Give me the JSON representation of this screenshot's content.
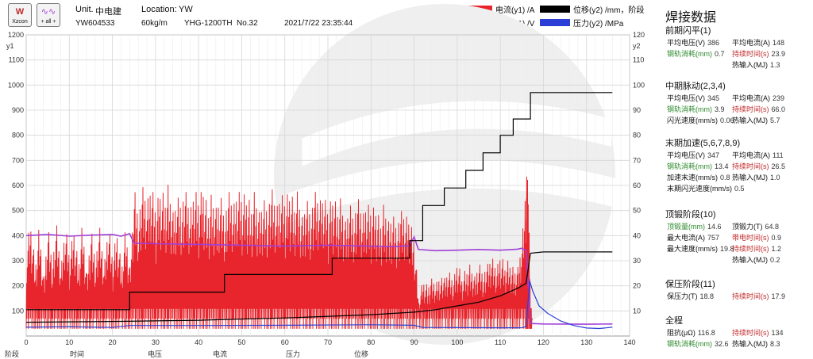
{
  "header": {
    "logo_left_top": "W",
    "logo_left_bottom": "Xzcon",
    "logo_right_bottom": "+ all +",
    "unit_label": "Unit.",
    "unit_value": "中电建",
    "location_label": "Location:",
    "location_value": "YW",
    "serial": "YW604533",
    "rail_weight": "60kg/m",
    "machine": "YHG-1200TH",
    "number": "No.32",
    "datetime": "2021/7/22 23:35:44"
  },
  "legend": [
    {
      "label": "电流(y1) /A",
      "color": "#e8242c"
    },
    {
      "label": "位移(y2) /mm，阶段",
      "color": "#000000"
    },
    {
      "label": "电压(y1) /V",
      "color": "#a13fd6"
    },
    {
      "label": "压力(y2) /MPa",
      "color": "#2b3fd6"
    }
  ],
  "bottom_labels": [
    "阶段",
    "时间",
    "电压",
    "电流",
    "压力",
    "位移"
  ],
  "panel": {
    "title": "焊接数据",
    "sections": [
      {
        "title": "前期闪平(1)",
        "rows": [
          [
            {
              "label": "平均电压(V)",
              "value": "386",
              "color": "normal"
            },
            {
              "label": "平均电流(A)",
              "value": "148",
              "color": "normal"
            }
          ],
          [
            {
              "label": "钢轨消耗(mm)",
              "value": "0.7",
              "color": "green"
            },
            {
              "label": "持续时间(s)",
              "value": "23.9",
              "color": "red"
            }
          ],
          [
            null,
            {
              "label": "热输入(MJ)",
              "value": "1.3",
              "color": "normal"
            }
          ]
        ]
      },
      {
        "title": "中期脉动(2,3,4)",
        "rows": [
          [
            {
              "label": "平均电压(V)",
              "value": "345",
              "color": "normal"
            },
            {
              "label": "平均电流(A)",
              "value": "239",
              "color": "normal"
            }
          ],
          [
            {
              "label": "钢轨消耗(mm)",
              "value": "3.9",
              "color": "green"
            },
            {
              "label": "持续时间(s)",
              "value": "66.0",
              "color": "red"
            }
          ],
          [
            {
              "label": "闪光速度(mm/s)",
              "value": "0.06",
              "color": "normal"
            },
            {
              "label": "热输入(MJ)",
              "value": "5.7",
              "color": "normal"
            }
          ]
        ]
      },
      {
        "title": "末期加速(5,6,7,8,9)",
        "rows": [
          [
            {
              "label": "平均电压(V)",
              "value": "347",
              "color": "normal"
            },
            {
              "label": "平均电流(A)",
              "value": "111",
              "color": "normal"
            }
          ],
          [
            {
              "label": "钢轨消耗(mm)",
              "value": "13.4",
              "color": "green"
            },
            {
              "label": "持续时间(s)",
              "value": "26.5",
              "color": "red"
            }
          ],
          [
            {
              "label": "加速末速(mm/s)",
              "value": "0.8",
              "color": "normal"
            },
            {
              "label": "热输入(MJ)",
              "value": "1.0",
              "color": "normal"
            }
          ],
          [
            {
              "label": "末期闪光速度(mm/s)",
              "value": "0.5",
              "color": "normal"
            },
            null
          ]
        ]
      },
      {
        "title": "顶锻阶段(10)",
        "rows": [
          [
            {
              "label": "顶锻量(mm)",
              "value": "14.6",
              "color": "green"
            },
            {
              "label": "顶锻力(T)",
              "value": "64.8",
              "color": "normal"
            }
          ],
          [
            {
              "label": "最大电流(A)",
              "value": "757",
              "color": "normal"
            },
            {
              "label": "带电时间(s)",
              "value": "0.9",
              "color": "red"
            }
          ],
          [
            {
              "label": "最大速度(mm/s)",
              "value": "19.8",
              "color": "normal"
            },
            {
              "label": "持续时间(s)",
              "value": "1.2",
              "color": "red"
            }
          ],
          [
            null,
            {
              "label": "热输入(MJ)",
              "value": "0.2",
              "color": "normal"
            }
          ]
        ]
      },
      {
        "title": "保压阶段(11)",
        "rows": [
          [
            {
              "label": "保压力(T)",
              "value": "18.8",
              "color": "normal"
            },
            {
              "label": "持续时间(s)",
              "value": "17.9",
              "color": "red"
            }
          ]
        ]
      },
      {
        "title": "全程",
        "rows": [
          [
            {
              "label": "阻抗(μΩ)",
              "value": "116.8",
              "color": "normal"
            },
            {
              "label": "持续时间(s)",
              "value": "134",
              "color": "red"
            }
          ],
          [
            {
              "label": "钢轨消耗(mm)",
              "value": "32.6",
              "color": "green"
            },
            {
              "label": "热输入(MJ)",
              "value": "8.3",
              "color": "normal"
            }
          ]
        ]
      }
    ]
  },
  "chart_data": {
    "type": "line",
    "xlim": [
      0,
      140
    ],
    "xticks": [
      0,
      10,
      20,
      30,
      40,
      50,
      60,
      70,
      80,
      90,
      100,
      110,
      120,
      130,
      140
    ],
    "y1lim": [
      0,
      1200
    ],
    "y1ticks": [
      100,
      200,
      300,
      400,
      500,
      600,
      700,
      800,
      900,
      1000,
      1100,
      1200
    ],
    "y1label": "y1",
    "y2lim": [
      0,
      120
    ],
    "y2ticks": [
      10,
      20,
      30,
      40,
      50,
      60,
      70,
      80,
      90,
      100,
      110,
      120
    ],
    "y2label": "y2",
    "grid": true,
    "series": [
      {
        "name": "电流(y1) /A",
        "axis": "y1",
        "color": "#e8242c",
        "envelope": [
          [
            0,
            380
          ],
          [
            1,
            480
          ],
          [
            2,
            300
          ],
          [
            3,
            470
          ],
          [
            4,
            250
          ],
          [
            5,
            480
          ],
          [
            6,
            320
          ],
          [
            7,
            460
          ],
          [
            8,
            280
          ],
          [
            9,
            470
          ],
          [
            10,
            330
          ],
          [
            11,
            460
          ],
          [
            12,
            300
          ],
          [
            13,
            480
          ],
          [
            14,
            270
          ],
          [
            15,
            470
          ],
          [
            16,
            330
          ],
          [
            17,
            450
          ],
          [
            18,
            290
          ],
          [
            19,
            470
          ],
          [
            20,
            320
          ],
          [
            21,
            450
          ],
          [
            22,
            290
          ],
          [
            23,
            460
          ],
          [
            24,
            300
          ],
          [
            25,
            650
          ],
          [
            26,
            520
          ],
          [
            27,
            620
          ],
          [
            28,
            560
          ],
          [
            29,
            640
          ],
          [
            30,
            520
          ],
          [
            31,
            630
          ],
          [
            32,
            580
          ],
          [
            33,
            640
          ],
          [
            34,
            540
          ],
          [
            35,
            610
          ],
          [
            36,
            580
          ],
          [
            37,
            600
          ],
          [
            38,
            520
          ],
          [
            39,
            620
          ],
          [
            40,
            560
          ],
          [
            41,
            640
          ],
          [
            42,
            530
          ],
          [
            43,
            600
          ],
          [
            44,
            560
          ],
          [
            45,
            620
          ],
          [
            46,
            520
          ],
          [
            47,
            600
          ],
          [
            48,
            540
          ],
          [
            49,
            610
          ],
          [
            50,
            580
          ],
          [
            51,
            600
          ],
          [
            52,
            550
          ],
          [
            53,
            610
          ],
          [
            54,
            540
          ],
          [
            55,
            600
          ],
          [
            56,
            560
          ],
          [
            57,
            610
          ],
          [
            58,
            530
          ],
          [
            59,
            600
          ],
          [
            60,
            560
          ],
          [
            61,
            620
          ],
          [
            62,
            560
          ],
          [
            63,
            610
          ],
          [
            64,
            520
          ],
          [
            65,
            600
          ],
          [
            66,
            540
          ],
          [
            67,
            600
          ],
          [
            68,
            560
          ],
          [
            69,
            590
          ],
          [
            70,
            520
          ],
          [
            71,
            600
          ],
          [
            72,
            540
          ],
          [
            73,
            580
          ],
          [
            74,
            500
          ],
          [
            75,
            580
          ],
          [
            76,
            520
          ],
          [
            77,
            570
          ],
          [
            78,
            500
          ],
          [
            79,
            560
          ],
          [
            80,
            520
          ],
          [
            81,
            550
          ],
          [
            82,
            480
          ],
          [
            83,
            560
          ],
          [
            84,
            500
          ],
          [
            85,
            530
          ],
          [
            86,
            480
          ],
          [
            87,
            520
          ],
          [
            88,
            500
          ],
          [
            89,
            480
          ],
          [
            90,
            400
          ],
          [
            91,
            150
          ],
          [
            92,
            240
          ],
          [
            93,
            210
          ],
          [
            94,
            250
          ],
          [
            95,
            230
          ],
          [
            96,
            260
          ],
          [
            97,
            240
          ],
          [
            98,
            270
          ],
          [
            99,
            230
          ],
          [
            100,
            310
          ],
          [
            101,
            250
          ],
          [
            102,
            280
          ],
          [
            103,
            300
          ],
          [
            104,
            260
          ],
          [
            105,
            320
          ],
          [
            106,
            270
          ],
          [
            107,
            300
          ],
          [
            108,
            330
          ],
          [
            109,
            280
          ],
          [
            110,
            340
          ],
          [
            111,
            300
          ],
          [
            112,
            320
          ],
          [
            113,
            280
          ],
          [
            114,
            300
          ],
          [
            115,
            420
          ],
          [
            116,
            720
          ],
          [
            116.3,
            650
          ],
          [
            116.6,
            500
          ],
          [
            117,
            80
          ],
          [
            117.4,
            70
          ]
        ]
      },
      {
        "name": "电压(y1) /V",
        "axis": "y1",
        "color": "#a13fd6",
        "points": [
          [
            0,
            400
          ],
          [
            5,
            405
          ],
          [
            10,
            398
          ],
          [
            15,
            402
          ],
          [
            20,
            405
          ],
          [
            22,
            398
          ],
          [
            24,
            408
          ],
          [
            25,
            370
          ],
          [
            30,
            368
          ],
          [
            40,
            365
          ],
          [
            50,
            362
          ],
          [
            60,
            358
          ],
          [
            70,
            362
          ],
          [
            80,
            358
          ],
          [
            85,
            356
          ],
          [
            89,
            360
          ],
          [
            90,
            395
          ],
          [
            91,
            345
          ],
          [
            95,
            340
          ],
          [
            100,
            342
          ],
          [
            105,
            345
          ],
          [
            110,
            342
          ],
          [
            114,
            346
          ],
          [
            115,
            350
          ],
          [
            116,
            340
          ],
          [
            116.5,
            200
          ],
          [
            117,
            50
          ],
          [
            120,
            48
          ],
          [
            130,
            47
          ],
          [
            136,
            48
          ]
        ]
      },
      {
        "name": "位移(y2) /mm，阶段",
        "axis": "y2",
        "color": "#000000",
        "points": [
          [
            0,
            10.5
          ],
          [
            24,
            10.5
          ],
          [
            24,
            17.5
          ],
          [
            46,
            17.5
          ],
          [
            46,
            24.5
          ],
          [
            71,
            24.5
          ],
          [
            71,
            31
          ],
          [
            89,
            31
          ],
          [
            89,
            38
          ],
          [
            92,
            38
          ],
          [
            92,
            52
          ],
          [
            97,
            52
          ],
          [
            97,
            59
          ],
          [
            102,
            59
          ],
          [
            102,
            66
          ],
          [
            106,
            66
          ],
          [
            106,
            73
          ],
          [
            110,
            73
          ],
          [
            110,
            80
          ],
          [
            113,
            80
          ],
          [
            113,
            86.5
          ],
          [
            117,
            86.5
          ],
          [
            117,
            97
          ],
          [
            136,
            97
          ]
        ]
      },
      {
        "name": "位移(y2) /mm，阶段",
        "axis": "y2",
        "color": "#000000",
        "points": [
          [
            0,
            5.5
          ],
          [
            20,
            5.8
          ],
          [
            40,
            6.3
          ],
          [
            60,
            7.2
          ],
          [
            80,
            8.5
          ],
          [
            90,
            9.5
          ],
          [
            95,
            10.5
          ],
          [
            100,
            12
          ],
          [
            105,
            13.5
          ],
          [
            110,
            16
          ],
          [
            114,
            19
          ],
          [
            116,
            21
          ],
          [
            117,
            33
          ],
          [
            120,
            33.5
          ],
          [
            136,
            33.5
          ]
        ]
      },
      {
        "name": "压力(y2) /MPa",
        "axis": "y2",
        "color": "#2b3fd6",
        "points": [
          [
            0,
            3.5
          ],
          [
            10,
            3.7
          ],
          [
            20,
            3.4
          ],
          [
            24,
            4.2
          ],
          [
            40,
            4.2
          ],
          [
            60,
            4.3
          ],
          [
            80,
            4.5
          ],
          [
            90,
            4.3
          ],
          [
            92,
            3.4
          ],
          [
            110,
            3.3
          ],
          [
            115,
            3.3
          ],
          [
            116,
            3.8
          ],
          [
            116.8,
            22
          ],
          [
            117.5,
            18
          ],
          [
            119,
            12
          ],
          [
            121,
            9
          ],
          [
            124,
            6
          ],
          [
            127,
            4.2
          ],
          [
            130,
            3.2
          ],
          [
            133,
            3
          ],
          [
            136,
            3.5
          ]
        ]
      }
    ]
  }
}
